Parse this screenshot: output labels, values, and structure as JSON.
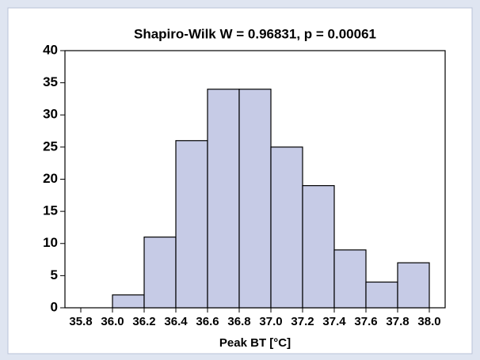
{
  "chart_data": {
    "type": "histogram",
    "title": "Shapiro-Wilk W = 0.96831, p = 0.00061",
    "x_label": "Peak BT [°C]",
    "bins": [
      35.8,
      36.0,
      36.2,
      36.4,
      36.6,
      36.8,
      37.0,
      37.2,
      37.4,
      37.6,
      37.8,
      38.0
    ],
    "values": [
      0,
      2,
      11,
      26,
      34,
      34,
      25,
      19,
      9,
      4,
      7
    ],
    "color": "#c6cbe6",
    "xlim": [
      35.7,
      38.1
    ],
    "xticks": [
      35.8,
      {
        "value": 36,
        "label": "36.0"
      },
      36.2,
      36.4,
      36.6,
      36.8,
      {
        "value": 37,
        "label": "37.0"
      },
      37.2,
      37.4,
      37.6,
      37.8,
      {
        "value": 38,
        "label": "38.0"
      }
    ],
    "ylim": [
      0,
      40
    ],
    "yticks": [
      0,
      5,
      10,
      15,
      20,
      25,
      30,
      35,
      40
    ],
    "grid": false
  }
}
